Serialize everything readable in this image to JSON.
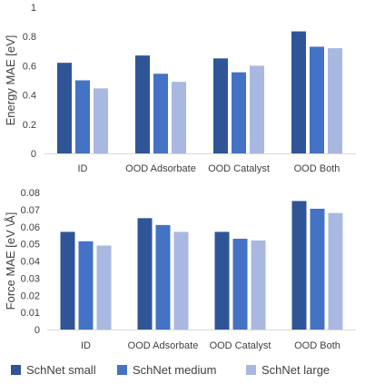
{
  "chart_data": [
    {
      "type": "bar",
      "categories": [
        "ID",
        "OOD Adsorbate",
        "OOD Catalyst",
        "OOD Both"
      ],
      "ylabel": "Energy MAE [eV]",
      "ylim": [
        0,
        1
      ],
      "yticks": [
        0,
        0.2,
        0.4,
        0.6,
        0.8,
        1
      ],
      "ytick_labels": [
        "0",
        "0.2",
        "0.4",
        "0.6",
        "0.8",
        "1"
      ],
      "grid": false,
      "series": [
        {
          "name": "SchNet small",
          "color": "#2F5597",
          "values": [
            0.62,
            0.67,
            0.65,
            0.835
          ]
        },
        {
          "name": "SchNet medium",
          "color": "#4472C4",
          "values": [
            0.5,
            0.545,
            0.555,
            0.73
          ]
        },
        {
          "name": "SchNet large",
          "color": "#A9B8E0",
          "values": [
            0.445,
            0.49,
            0.6,
            0.72
          ]
        }
      ]
    },
    {
      "type": "bar",
      "categories": [
        "ID",
        "OOD Adsorbate",
        "OOD Catalyst",
        "OOD Both"
      ],
      "ylabel": "Force MAE [eV \\Å]",
      "ylim": [
        0,
        0.08
      ],
      "yticks": [
        0,
        0.01,
        0.02,
        0.03,
        0.04,
        0.05,
        0.06,
        0.07,
        0.08
      ],
      "ytick_labels": [
        "0",
        "0.01",
        "0.02",
        "0.03",
        "0.04",
        "0.05",
        "0.06",
        "0.07",
        "0.08"
      ],
      "grid": false,
      "series": [
        {
          "name": "SchNet small",
          "color": "#2F5597",
          "values": [
            0.057,
            0.065,
            0.057,
            0.075
          ]
        },
        {
          "name": "SchNet medium",
          "color": "#4472C4",
          "values": [
            0.0515,
            0.061,
            0.053,
            0.0705
          ]
        },
        {
          "name": "SchNet large",
          "color": "#A9B8E0",
          "values": [
            0.049,
            0.057,
            0.052,
            0.068
          ]
        }
      ]
    }
  ],
  "legend": {
    "placement": "bottom",
    "items": [
      {
        "label": "SchNet small",
        "color": "#2F5597"
      },
      {
        "label": "SchNet medium",
        "color": "#4472C4"
      },
      {
        "label": "SchNet large",
        "color": "#A9B8E0"
      }
    ]
  }
}
